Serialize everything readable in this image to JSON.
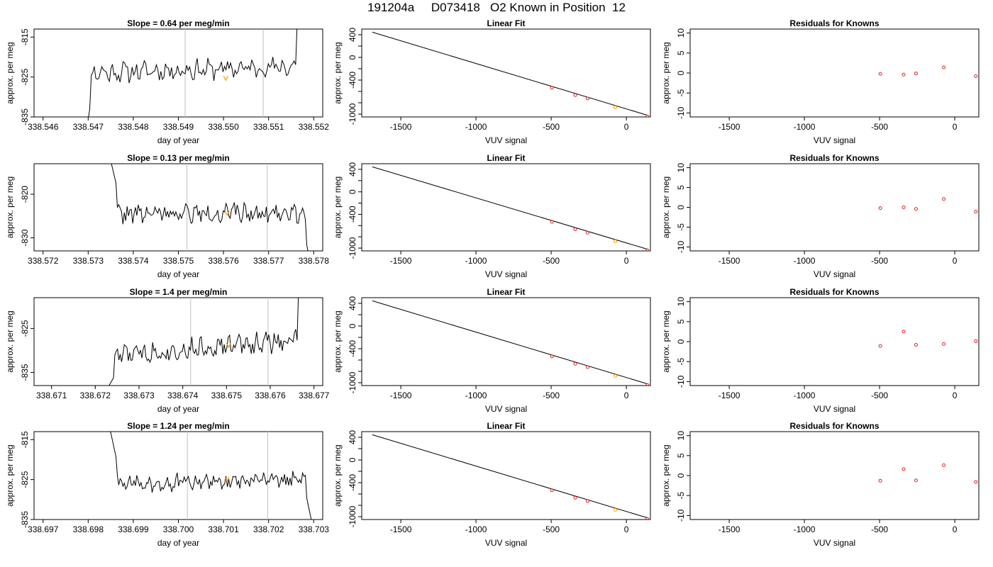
{
  "figure": {
    "title": "191204a     D073418   O2 Known in Position  12"
  },
  "colors": {
    "line": "#000000",
    "marker": "#ff9900",
    "point": "#dd2222",
    "vline": "#bfbfbf",
    "axis": "#000000"
  },
  "chart_data": [
    {
      "type": "line",
      "panel": "time-series-1",
      "title": "Slope =  0.64  per meg/min",
      "xlabel": "day of year",
      "ylabel": "approx. per meg",
      "xlim": [
        338.5458,
        338.5522
      ],
      "ylim": [
        -835,
        -813
      ],
      "xticks": [
        "338.546",
        "338.547",
        "338.548",
        "338.549",
        "338.550",
        "338.551",
        "338.552"
      ],
      "yticks": [
        "-815",
        "-825",
        "-835"
      ],
      "vlines": [
        338.54915,
        338.55088
      ],
      "marker": {
        "x": 338.55005,
        "y": -825.3
      },
      "series_start": 338.5468,
      "series_end": 338.5518,
      "series_n": 150,
      "series_baseline": -823.2,
      "series_trend": 1.7,
      "series_amp": 1.9,
      "series_head": [
        -850,
        -832
      ],
      "series_tail": [
        -813,
        -806
      ],
      "seed": 11
    },
    {
      "type": "line",
      "panel": "linear-fit-1",
      "title": "Linear Fit",
      "xlabel": "VUV signal",
      "ylabel": "approx. per meg",
      "xlim": [
        -1760,
        160
      ],
      "ylim": [
        -1050,
        500
      ],
      "xticks": [
        -1500,
        -1000,
        -500,
        0
      ],
      "yticks": [
        400,
        0,
        -400,
        -1000
      ],
      "fit_line": {
        "x": [
          -1690,
          140
        ],
        "y": [
          445,
          -1020
        ]
      },
      "points": {
        "x": [
          -495,
          -340,
          -258,
          -73,
          140
        ],
        "y": [
          -535,
          -665,
          -725,
          -880,
          -1040
        ]
      },
      "highlight_index": 3
    },
    {
      "type": "scatter",
      "panel": "residuals-1",
      "title": "Residuals for Knowns",
      "xlabel": "VUV signal",
      "ylabel": "approx. per meg",
      "xlim": [
        -1760,
        160
      ],
      "ylim": [
        -11,
        11
      ],
      "xticks": [
        -1500,
        -1000,
        -500,
        0
      ],
      "yticks": [
        10,
        5,
        0,
        -5,
        -10
      ],
      "x": [
        -495,
        -340,
        -258,
        -73,
        140
      ],
      "y": [
        -0.2,
        -0.4,
        -0.1,
        1.4,
        -0.8
      ]
    },
    {
      "type": "line",
      "panel": "time-series-2",
      "title": "Slope =  0.13  per meg/min",
      "xlabel": "day of year",
      "ylabel": "approx. per meg",
      "xlim": [
        338.5718,
        338.5782
      ],
      "ylim": [
        -833,
        -813
      ],
      "xticks": [
        "338.572",
        "338.573",
        "338.574",
        "338.575",
        "338.576",
        "338.577",
        "338.578"
      ],
      "yticks": [
        "-820",
        "-830"
      ],
      "vlines": [
        338.57519,
        338.57697
      ],
      "marker": {
        "x": 338.57608,
        "y": -824.3
      },
      "series_start": 338.5734,
      "series_end": 338.578,
      "series_n": 150,
      "series_baseline": -824.4,
      "series_trend": 0.3,
      "series_amp": 1.7,
      "series_head": [
        -808,
        -818
      ],
      "series_tail": [
        -830,
        -840
      ],
      "seed": 22
    },
    {
      "type": "line",
      "panel": "linear-fit-2",
      "title": "Linear Fit",
      "xlabel": "VUV signal",
      "ylabel": "approx. per meg",
      "xlim": [
        -1760,
        160
      ],
      "ylim": [
        -1050,
        500
      ],
      "xticks": [
        -1500,
        -1000,
        -500,
        0
      ],
      "yticks": [
        400,
        0,
        -400,
        -1000
      ],
      "fit_line": {
        "x": [
          -1690,
          140
        ],
        "y": [
          445,
          -1020
        ]
      },
      "points": {
        "x": [
          -495,
          -340,
          -258,
          -73,
          140
        ],
        "y": [
          -535,
          -665,
          -725,
          -880,
          -1040
        ]
      },
      "highlight_index": 3
    },
    {
      "type": "scatter",
      "panel": "residuals-2",
      "title": "Residuals for Knowns",
      "xlabel": "VUV signal",
      "ylabel": "approx. per meg",
      "xlim": [
        -1760,
        160
      ],
      "ylim": [
        -11,
        11
      ],
      "xticks": [
        -1500,
        -1000,
        -500,
        0
      ],
      "yticks": [
        10,
        5,
        0,
        -5,
        -10
      ],
      "x": [
        -495,
        -340,
        -258,
        -73,
        140
      ],
      "y": [
        -0.2,
        0.0,
        -0.4,
        2.1,
        -1.1
      ]
    },
    {
      "type": "line",
      "panel": "time-series-3",
      "title": "Slope =  1.4  per meg/min",
      "xlabel": "day of year",
      "ylabel": "approx. per meg",
      "xlim": [
        338.6706,
        338.6772
      ],
      "ylim": [
        -838,
        -818
      ],
      "xticks": [
        "338.671",
        "338.672",
        "338.673",
        "338.674",
        "338.675",
        "338.676",
        "338.677"
      ],
      "yticks": [
        "-825",
        "-835"
      ],
      "vlines": [
        338.67418,
        338.67595
      ],
      "marker": {
        "x": 338.67505,
        "y": -828.8
      },
      "series_start": 338.6722,
      "series_end": 338.6768,
      "series_n": 150,
      "series_baseline": -829.4,
      "series_trend": 4.0,
      "series_amp": 1.8,
      "series_head": [
        -840,
        -836
      ],
      "series_tail": [
        -818,
        -810
      ],
      "seed": 33
    },
    {
      "type": "line",
      "panel": "linear-fit-3",
      "title": "Linear Fit",
      "xlabel": "VUV signal",
      "ylabel": "approx. per meg",
      "xlim": [
        -1760,
        160
      ],
      "ylim": [
        -1050,
        500
      ],
      "xticks": [
        -1500,
        -1000,
        -500,
        0
      ],
      "yticks": [
        400,
        0,
        -400,
        -1000
      ],
      "fit_line": {
        "x": [
          -1690,
          140
        ],
        "y": [
          445,
          -1020
        ]
      },
      "points": {
        "x": [
          -495,
          -340,
          -258,
          -73,
          140
        ],
        "y": [
          -535,
          -665,
          -725,
          -880,
          -1040
        ]
      },
      "highlight_index": 3
    },
    {
      "type": "scatter",
      "panel": "residuals-3",
      "title": "Residuals for Knowns",
      "xlabel": "VUV signal",
      "ylabel": "approx. per meg",
      "xlim": [
        -1760,
        160
      ],
      "ylim": [
        -11,
        11
      ],
      "xticks": [
        -1500,
        -1000,
        -500,
        0
      ],
      "yticks": [
        10,
        5,
        0,
        -5,
        -10
      ],
      "x": [
        -495,
        -340,
        -258,
        -73,
        140
      ],
      "y": [
        -1.1,
        2.5,
        -0.8,
        -0.6,
        0.1
      ]
    },
    {
      "type": "line",
      "panel": "time-series-4",
      "title": "Slope =  1.24  per meg/min",
      "xlabel": "day of year",
      "ylabel": "approx. per meg",
      "xlim": [
        338.6968,
        338.7032
      ],
      "ylim": [
        -835,
        -813
      ],
      "xticks": [
        "338.697",
        "338.698",
        "338.699",
        "338.700",
        "338.701",
        "338.702",
        "338.703"
      ],
      "yticks": [
        "-815",
        "-825",
        "-835"
      ],
      "vlines": [
        338.7002,
        338.70198
      ],
      "marker": {
        "x": 338.70108,
        "y": -824.8
      },
      "series_start": 338.6984,
      "series_end": 338.703,
      "series_n": 150,
      "series_baseline": -825.6,
      "series_trend": 1.0,
      "series_amp": 1.6,
      "series_head": [
        -808,
        -820
      ],
      "series_tail": [
        -828,
        -838
      ],
      "seed": 44
    },
    {
      "type": "line",
      "panel": "linear-fit-4",
      "title": "Linear Fit",
      "xlabel": "VUV signal",
      "ylabel": "approx. per meg",
      "xlim": [
        -1760,
        160
      ],
      "ylim": [
        -1050,
        500
      ],
      "xticks": [
        -1500,
        -1000,
        -500,
        0
      ],
      "yticks": [
        400,
        0,
        -400,
        -1000
      ],
      "fit_line": {
        "x": [
          -1690,
          140
        ],
        "y": [
          445,
          -1020
        ]
      },
      "points": {
        "x": [
          -495,
          -340,
          -258,
          -73,
          140
        ],
        "y": [
          -535,
          -665,
          -725,
          -880,
          -1040
        ]
      },
      "highlight_index": 3
    },
    {
      "type": "scatter",
      "panel": "residuals-4",
      "title": "Residuals for Knowns",
      "xlabel": "VUV signal",
      "ylabel": "approx. per meg",
      "xlim": [
        -1760,
        160
      ],
      "ylim": [
        -11,
        11
      ],
      "xticks": [
        -1500,
        -1000,
        -500,
        0
      ],
      "yticks": [
        10,
        5,
        0,
        -5,
        -10
      ],
      "x": [
        -495,
        -340,
        -258,
        -73,
        140
      ],
      "y": [
        -1.3,
        1.6,
        -1.2,
        2.6,
        -1.6
      ]
    }
  ]
}
